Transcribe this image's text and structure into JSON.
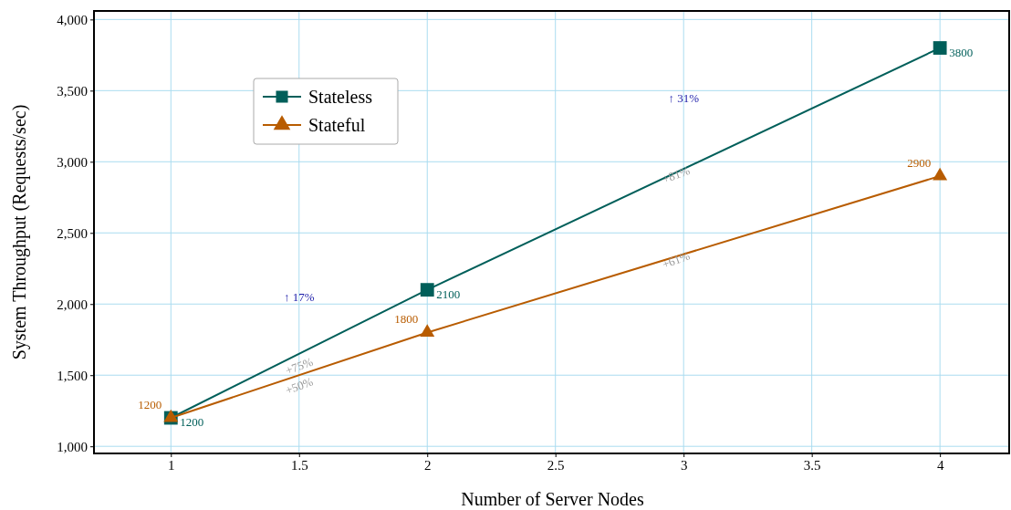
{
  "chart_data": {
    "type": "line",
    "xlabel": "Number of Server Nodes",
    "ylabel": "System Throughput (Requests/sec)",
    "x": [
      1,
      2,
      4
    ],
    "series": [
      {
        "name": "Stateless",
        "color": "#005f5a",
        "values": [
          1200,
          2100,
          3800
        ],
        "marker": "square"
      },
      {
        "name": "Stateful",
        "color": "#b85c00",
        "values": [
          1200,
          1800,
          2900
        ],
        "marker": "triangle"
      }
    ],
    "xlim": [
      0.7,
      4.27
    ],
    "xticks": [
      1,
      1.5,
      2,
      2.5,
      3,
      3.5,
      4
    ],
    "ylim": [
      950,
      4060
    ],
    "yticks": [
      {
        "value": 1000,
        "label": "1,000"
      },
      {
        "value": 1500,
        "label": "1,500"
      },
      {
        "value": 2000,
        "label": "2,000"
      },
      {
        "value": 2500,
        "label": "2,500"
      },
      {
        "value": 3000,
        "label": "3,000"
      },
      {
        "value": 3500,
        "label": "3,500"
      },
      {
        "value": 4000,
        "label": "4,000"
      }
    ],
    "grid": true,
    "legend": "top left",
    "data_labels": true,
    "line_style": "solid",
    "annotations": [
      "↑ 17%",
      "↑ 31%",
      "+75%",
      "+50%",
      "+81%",
      "+61%"
    ]
  }
}
